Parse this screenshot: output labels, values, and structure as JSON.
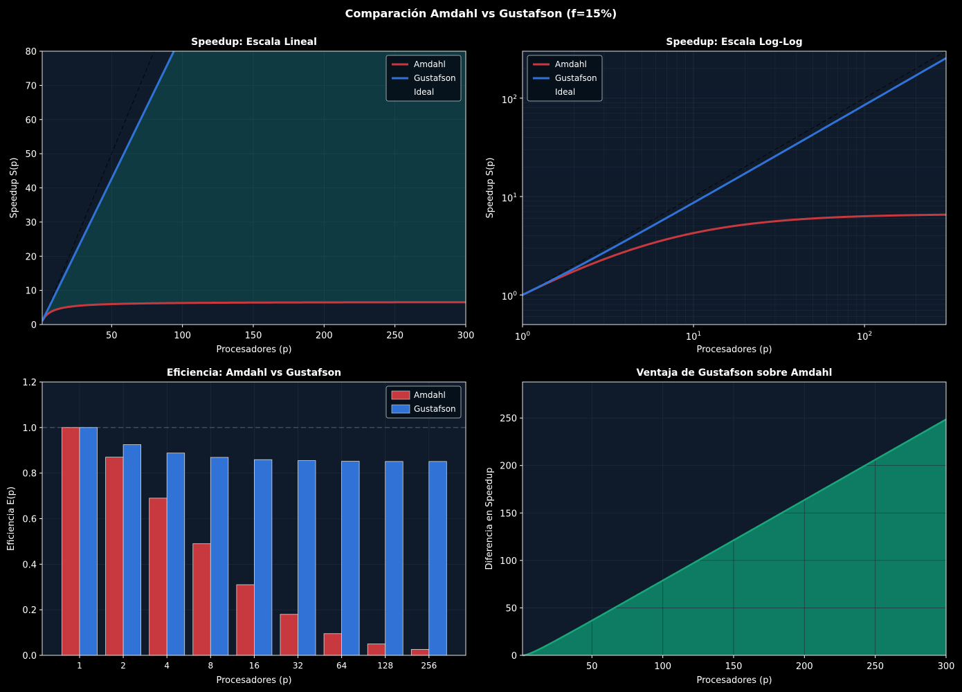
{
  "figure_title": "Comparación Amdahl vs Gustafson (f=15%)",
  "colors": {
    "background": "#000000",
    "panel": "#0f1b2b",
    "amdahl": "#c8393f",
    "gustafson": "#3072d6",
    "advantage": "#1aa67a",
    "advantage_fill": "#0e7c62",
    "text": "#ffffff"
  },
  "chart_data": [
    {
      "id": "linear",
      "type": "line",
      "title": "Speedup: Escala Lineal",
      "xlabel": "Procesadores (p)",
      "ylabel": "Speedup S(p)",
      "xlim": [
        1,
        300
      ],
      "ylim": [
        0,
        80
      ],
      "xticks": [
        50,
        100,
        150,
        200,
        250,
        300
      ],
      "yticks": [
        0,
        10,
        20,
        30,
        40,
        50,
        60,
        70,
        80
      ],
      "serial_fraction": 0.15,
      "series": [
        {
          "name": "Amdahl",
          "formula": "1/(f+(1-f)/p)"
        },
        {
          "name": "Gustafson",
          "formula": "p - f*(p-1)"
        },
        {
          "name": "Ideal",
          "formula": "p"
        }
      ],
      "legend": [
        "Amdahl",
        "Gustafson",
        "Ideal"
      ],
      "legend_position": "top-right"
    },
    {
      "id": "loglog",
      "type": "line",
      "title": "Speedup: Escala Log-Log",
      "xlabel": "Procesadores (p)",
      "ylabel": "Speedup S(p)",
      "xscale": "log",
      "yscale": "log",
      "xlim": [
        1,
        300
      ],
      "ylim": [
        0.5,
        300
      ],
      "xticks": [
        {
          "value": 1,
          "base": "10",
          "exp": "0"
        },
        {
          "value": 10,
          "base": "10",
          "exp": "1"
        },
        {
          "value": 100,
          "base": "10",
          "exp": "2"
        }
      ],
      "yticks": [
        {
          "value": 1,
          "base": "10",
          "exp": "0"
        },
        {
          "value": 10,
          "base": "10",
          "exp": "1"
        },
        {
          "value": 100,
          "base": "10",
          "exp": "2"
        }
      ],
      "legend": [
        "Amdahl",
        "Gustafson",
        "Ideal"
      ],
      "legend_position": "top-left"
    },
    {
      "id": "efficiency",
      "type": "bar",
      "title": "Eficiencia: Amdahl vs Gustafson",
      "xlabel": "Procesadores (p)",
      "ylabel": "Eficiencia E(p)",
      "ylim": [
        0,
        1.2
      ],
      "yticks": [
        "0.0",
        "0.2",
        "0.4",
        "0.6",
        "0.8",
        "1.0",
        "1.2"
      ],
      "categories": [
        "1",
        "2",
        "4",
        "8",
        "16",
        "32",
        "64",
        "128",
        "256"
      ],
      "series": [
        {
          "name": "Amdahl",
          "values": [
            1.0,
            0.87,
            0.69,
            0.49,
            0.31,
            0.18,
            0.095,
            0.05,
            0.026
          ]
        },
        {
          "name": "Gustafson",
          "values": [
            1.0,
            0.925,
            0.888,
            0.869,
            0.859,
            0.855,
            0.852,
            0.851,
            0.851
          ]
        }
      ],
      "reference_line": 1.0,
      "legend": [
        "Amdahl",
        "Gustafson"
      ],
      "legend_position": "top-right"
    },
    {
      "id": "advantage",
      "type": "area",
      "title": "Ventaja de Gustafson sobre Amdahl",
      "xlabel": "Procesadores (p)",
      "ylabel": "Diferencia en Speedup",
      "xlim": [
        1,
        300
      ],
      "ylim": [
        0,
        288
      ],
      "xticks": [
        50,
        100,
        150,
        200,
        250,
        300
      ],
      "yticks": [
        0,
        50,
        100,
        150,
        200,
        250
      ],
      "formula": "Gustafson(p) - Amdahl(p)"
    }
  ]
}
